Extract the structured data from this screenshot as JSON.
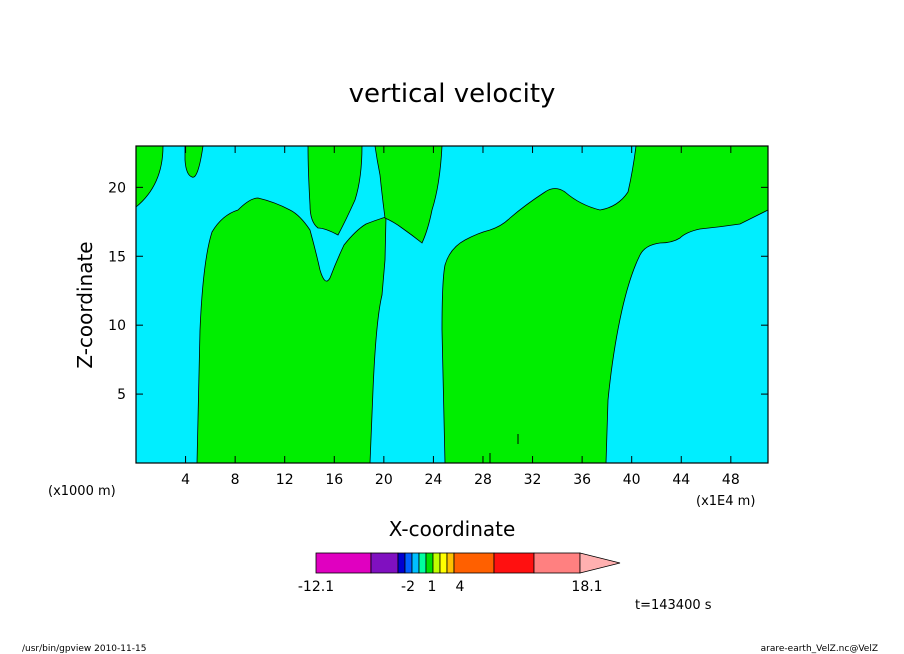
{
  "chart_data": {
    "type": "contour",
    "title": "vertical velocity",
    "xlabel": "X-coordinate",
    "ylabel": "Z-coordinate",
    "x_unit_left": "(x1000 m)",
    "x_unit_right": "(x1E4 m)",
    "xlim": [
      0,
      51
    ],
    "ylim": [
      0,
      23
    ],
    "x_ticks": [
      4,
      8,
      12,
      16,
      20,
      24,
      28,
      32,
      36,
      40,
      44,
      48
    ],
    "y_ticks": [
      5,
      10,
      15,
      20
    ],
    "x_tick_labels": [
      "4",
      "8",
      "12",
      "16",
      "20",
      "24",
      "28",
      "32",
      "36",
      "40",
      "44",
      "48"
    ],
    "y_tick_labels": [
      "5",
      "10",
      "15",
      "20"
    ],
    "fill_colors": {
      "negative": "#00eeff",
      "positive": "#00ee00"
    },
    "colorbar": {
      "colors": [
        "#e000c0",
        "#8010c0",
        "#0000d0",
        "#0060ff",
        "#00c0ff",
        "#00ffa0",
        "#00e000",
        "#c0ff00",
        "#ffff00",
        "#ffc000",
        "#ff6000",
        "#ff1010",
        "#ff8080",
        "#ffb0b0"
      ],
      "labels": [
        "-12.1",
        "-2",
        "1",
        "4",
        "18.1"
      ]
    },
    "time_label": "t=143400 s"
  },
  "footer": {
    "left": "/usr/bin/gpview  2010-11-15",
    "right": "arare-earth_VelZ.nc@VelZ"
  }
}
